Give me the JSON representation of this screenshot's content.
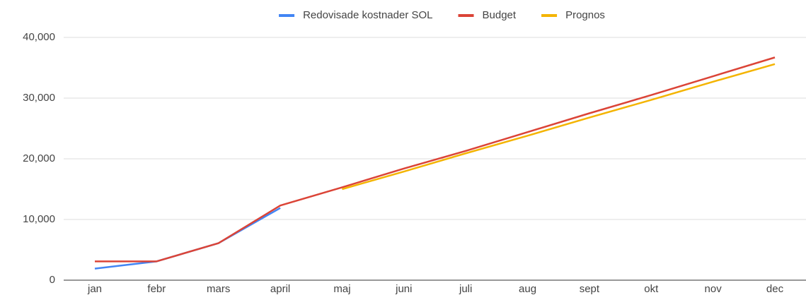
{
  "chart_data": {
    "type": "line",
    "categories": [
      "jan",
      "febr",
      "mars",
      "april",
      "maj",
      "juni",
      "juli",
      "aug",
      "sept",
      "okt",
      "nov",
      "dec"
    ],
    "series": [
      {
        "name": "Redovisade kostnader SOL",
        "color": "#4285f4",
        "values": [
          1900,
          3100,
          6100,
          11900,
          null,
          null,
          null,
          null,
          null,
          null,
          null,
          null
        ]
      },
      {
        "name": "Budget",
        "color": "#db4437",
        "values": [
          3100,
          3100,
          6100,
          12300,
          15300,
          18400,
          21300,
          24400,
          27500,
          30500,
          33600,
          36700
        ]
      },
      {
        "name": "Prognos",
        "color": "#f4b400",
        "values": [
          null,
          null,
          null,
          null,
          15000,
          17900,
          20900,
          23800,
          26800,
          29700,
          32700,
          35600
        ]
      }
    ],
    "ylim": [
      0,
      40000
    ],
    "yticks": [
      0,
      {
        "value": 10000,
        "label": "10,000"
      },
      {
        "value": 20000,
        "label": "20,000"
      },
      {
        "value": 30000,
        "label": "30,000"
      },
      {
        "value": 40000,
        "label": "40,000"
      }
    ],
    "grid": true,
    "legend": "top"
  }
}
